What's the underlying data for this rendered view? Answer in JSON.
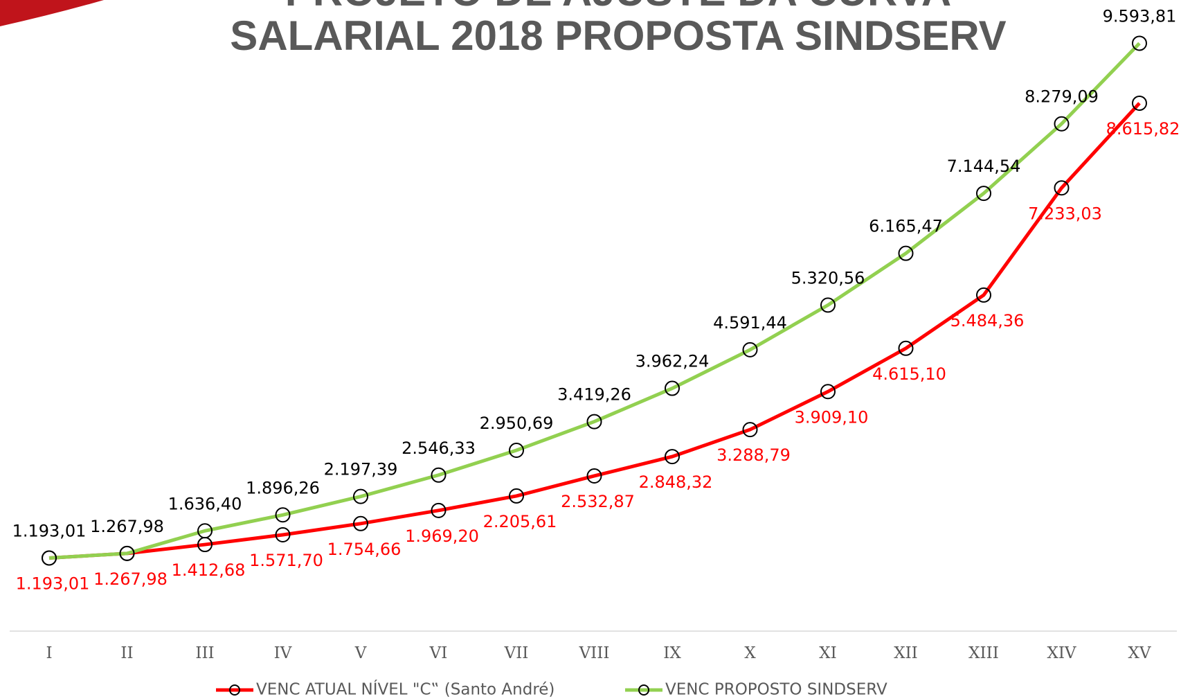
{
  "chart_data": {
    "type": "line",
    "title": [
      "PROJETO DE AJUSTE DA CURVA",
      "SALARIAL 2018 PROPOSTA SINDSERV"
    ],
    "categories": [
      "I",
      "II",
      "III",
      "IV",
      "V",
      "VI",
      "VII",
      "VIII",
      "IX",
      "X",
      "XI",
      "XII",
      "XIII",
      "XIV",
      "XV"
    ],
    "series": [
      {
        "name": "VENC ATUAL NÍVEL \"C‟ (Santo André)",
        "color": "#ff0000",
        "values": [
          1193.01,
          1267.98,
          1412.68,
          1571.7,
          1754.66,
          1969.2,
          2205.61,
          2532.87,
          2848.32,
          3288.79,
          3909.1,
          4615.1,
          5484.36,
          7233.03,
          8615.82
        ],
        "value_labels": [
          "1.193,01",
          "1.267,98",
          "1.412,68",
          "1.571,70",
          "1.754,66",
          "1.969,20",
          "2.205,61",
          "2.532,87",
          "2.848,32",
          "3.288,79",
          "3.909,10",
          "4.615,10",
          "5.484,36",
          "7.233,03",
          "8.615,82"
        ]
      },
      {
        "name": "VENC PROPOSTO SINDSERV",
        "color": "#92d050",
        "values": [
          1193.01,
          1267.98,
          1636.4,
          1896.26,
          2197.39,
          2546.33,
          2950.69,
          3419.26,
          3962.24,
          4591.44,
          5320.56,
          6165.47,
          7144.54,
          8279.09,
          9593.81
        ],
        "value_labels": [
          "1.193,01",
          "1.267,98",
          "1.636,40",
          "1.896,26",
          "2.197,39",
          "2.546,33",
          "2.950,69",
          "3.419,26",
          "3.962,24",
          "4.591,44",
          "5.320,56",
          "6.165,47",
          "7.144,54",
          "8.279,09",
          "9.593,81"
        ]
      }
    ],
    "ylim": [
      0,
      10300
    ],
    "legend": "bottom"
  }
}
